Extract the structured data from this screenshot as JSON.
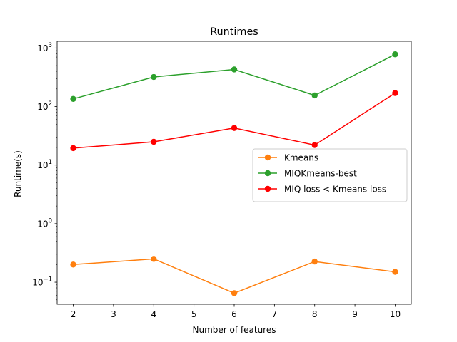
{
  "chart_data": {
    "type": "line",
    "title": "Runtimes",
    "xlabel": "Number of features",
    "ylabel": "Runtime(s)",
    "x": [
      2,
      4,
      6,
      8,
      10
    ],
    "xlim": [
      1.6,
      10.4
    ],
    "ylim": [
      0.042,
      1300
    ],
    "yscale": "log",
    "xticks": [
      2,
      3,
      4,
      5,
      6,
      7,
      8,
      9,
      10
    ],
    "yticks": [
      {
        "value": 0.1,
        "base": "10",
        "exp": "−1"
      },
      {
        "value": 1,
        "base": "10",
        "exp": "0"
      },
      {
        "value": 10,
        "base": "10",
        "exp": "1"
      },
      {
        "value": 100,
        "base": "10",
        "exp": "2"
      },
      {
        "value": 1000,
        "base": "10",
        "exp": "3"
      }
    ],
    "grid": false,
    "legend_position": "center-right",
    "series": [
      {
        "name": "Kmeans",
        "color": "#ff7f0e",
        "values": [
          0.2,
          0.25,
          0.065,
          0.225,
          0.15
        ]
      },
      {
        "name": "MIQKmeans-best",
        "color": "#2ca02c",
        "values": [
          135,
          320,
          430,
          155,
          780
        ]
      },
      {
        "name": "MIQ loss < Kmeans loss",
        "color": "#ff0000",
        "values": [
          19.5,
          25,
          43,
          22,
          170
        ]
      }
    ]
  }
}
